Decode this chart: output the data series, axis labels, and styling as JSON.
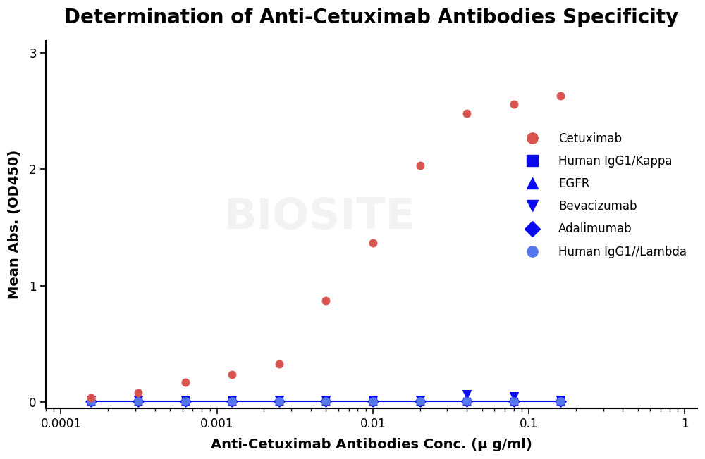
{
  "title": "Determination of Anti-Cetuximab Antibodies Specificity",
  "xlabel": "Anti-Cetuximab Antibodies Conc. (μ g/ml)",
  "ylabel": "Mean Abs. (OD450)",
  "background_color": "#ffffff",
  "title_fontsize": 20,
  "label_fontsize": 14,
  "ylim": [
    -0.05,
    3.1
  ],
  "cetuximab_x": [
    0.000156,
    0.000313,
    0.000625,
    0.00125,
    0.0025,
    0.005,
    0.01,
    0.02,
    0.04,
    0.08,
    0.16
  ],
  "cetuximab_y": [
    0.04,
    0.08,
    0.17,
    0.24,
    0.33,
    0.87,
    1.37,
    2.03,
    2.48,
    2.56,
    2.63
  ],
  "cetuximab_color": "#d9534f",
  "cetuximab_line_color": "#cc2222",
  "control_x": [
    0.000156,
    0.000313,
    0.000625,
    0.00125,
    0.0025,
    0.005,
    0.01,
    0.02,
    0.04,
    0.08,
    0.16
  ],
  "kappa_y": [
    0.01,
    0.01,
    0.01,
    0.01,
    0.01,
    0.01,
    0.01,
    0.01,
    0.01,
    0.01,
    0.01
  ],
  "egfr_y": [
    0.01,
    0.01,
    0.01,
    0.01,
    0.01,
    0.01,
    0.01,
    0.01,
    0.01,
    0.01,
    0.01
  ],
  "bev_y": [
    0.02,
    0.02,
    0.02,
    0.02,
    0.02,
    0.02,
    0.02,
    0.02,
    0.07,
    0.05,
    0.02
  ],
  "adali_y": [
    0.01,
    0.01,
    0.01,
    0.01,
    0.01,
    0.01,
    0.01,
    0.01,
    0.01,
    0.01,
    0.01
  ],
  "lambda_y": [
    0.01,
    0.01,
    0.01,
    0.01,
    0.01,
    0.01,
    0.01,
    0.01,
    0.01,
    0.01,
    0.01
  ],
  "blue_color": "#0a0aee",
  "blue_light_color": "#5577ee",
  "legend_labels": [
    "Cetuximab",
    "Human IgG1/Kappa",
    "EGFR",
    "Bevacizumab",
    "Adalimumab",
    "Human IgG1//Lambda"
  ],
  "legend_markers": [
    "o",
    "s",
    "^",
    "v",
    "D",
    "o"
  ],
  "legend_colors": [
    "#d9534f",
    "#0a0aee",
    "#0a0aee",
    "#0a0aee",
    "#0a0aee",
    "#5577ee"
  ],
  "watermark_text": "BIOSITE",
  "yticks": [
    0,
    1,
    2,
    3
  ],
  "xtick_labels": [
    "0.0001",
    "0.001",
    "0.01",
    "0.1",
    "1"
  ],
  "xtick_values": [
    0.0001,
    0.001,
    0.01,
    0.1,
    1.0
  ]
}
